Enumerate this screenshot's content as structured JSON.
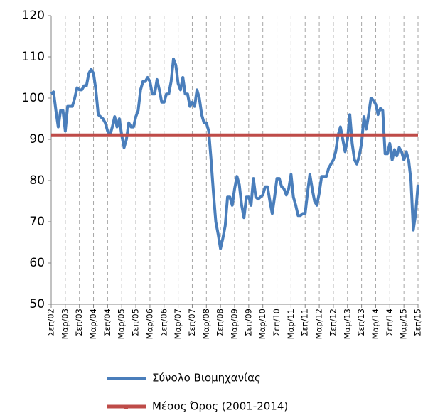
{
  "chart_data": {
    "type": "line",
    "categories": [
      "Σεπ/02",
      null,
      null,
      null,
      null,
      null,
      "Μαρ/03",
      null,
      null,
      null,
      null,
      null,
      "Σεπ/03",
      null,
      null,
      null,
      null,
      null,
      "Μαρ/04",
      null,
      null,
      null,
      null,
      null,
      "Σεπ/04",
      null,
      null,
      null,
      null,
      null,
      "Μαρ/05",
      null,
      null,
      null,
      null,
      null,
      "Σεπ/05",
      null,
      null,
      null,
      null,
      null,
      "Μαρ/06",
      null,
      null,
      null,
      null,
      null,
      "Σεπ/06",
      null,
      null,
      null,
      null,
      null,
      "Μαρ/07",
      null,
      null,
      null,
      null,
      null,
      "Σεπ/07",
      null,
      null,
      null,
      null,
      null,
      "Μαρ/08",
      null,
      null,
      null,
      null,
      null,
      "Σεπ/08",
      null,
      null,
      null,
      null,
      null,
      "Μαρ/09",
      null,
      null,
      null,
      null,
      null,
      "Σεπ/09",
      null,
      null,
      null,
      null,
      null,
      "Μαρ/10",
      null,
      null,
      null,
      null,
      null,
      "Σεπ/10",
      null,
      null,
      null,
      null,
      null,
      "Μαρ/11",
      null,
      null,
      null,
      null,
      null,
      "Σεπ/11",
      null,
      null,
      null,
      null,
      null,
      "Μαρ/12",
      null,
      null,
      null,
      null,
      null,
      "Σεπ/12",
      null,
      null,
      null,
      null,
      null,
      "Μαρ/13",
      null,
      null,
      null,
      null,
      null,
      "Σεπ/13",
      null,
      null,
      null,
      null,
      null,
      "Μαρ/14",
      null,
      null,
      null,
      null,
      null,
      "Σεπ/14",
      null,
      null,
      null,
      null,
      null,
      "Μαρ/15",
      null,
      null,
      null,
      null,
      null,
      "Σεπ/15"
    ],
    "series": [
      {
        "name": "Σύνολο Βιομηχανίας",
        "color": "#4a7ebb",
        "values": [
          101,
          101.5,
          97,
          93,
          97,
          97,
          92,
          98,
          98,
          98,
          100,
          102.5,
          102,
          102,
          103,
          103,
          106,
          107,
          106,
          102,
          96,
          95.5,
          95,
          94,
          92,
          91,
          93,
          95.5,
          93,
          95,
          91,
          88,
          90,
          94,
          93,
          93,
          95.5,
          97,
          102,
          104,
          104,
          105,
          104,
          101,
          101,
          104.5,
          102,
          99,
          99,
          101,
          101,
          104,
          109.5,
          108,
          103.5,
          102,
          105,
          101,
          101,
          98,
          99,
          98,
          102,
          100,
          96,
          94,
          94,
          92,
          85,
          77,
          70,
          67,
          63.5,
          66,
          69,
          76,
          76,
          74,
          78,
          81,
          79,
          74,
          71,
          76,
          76,
          74,
          80.5,
          76,
          75.5,
          76,
          76.5,
          78.5,
          78.5,
          75,
          72,
          76,
          80.5,
          80.5,
          78.5,
          78,
          76.5,
          78,
          81.5,
          76,
          74,
          71.5,
          71.5,
          72,
          72,
          77,
          81.5,
          78,
          75,
          74,
          77,
          81,
          81,
          81,
          83,
          84,
          85,
          87,
          91,
          93,
          90,
          87,
          90,
          96,
          89,
          85,
          84,
          86,
          89,
          95.5,
          92.5,
          96,
          100,
          99.5,
          98.5,
          96,
          97.5,
          97,
          86.5,
          86.5,
          89,
          85,
          87.5,
          86,
          88,
          87,
          85,
          87,
          85,
          80,
          68,
          72,
          79
        ]
      },
      {
        "name": "Μέσος Όρος (2001-2014)",
        "color": "#be4b48",
        "values": [
          91,
          91,
          91,
          91,
          91,
          91,
          91,
          91,
          91,
          91,
          91,
          91,
          91,
          91,
          91,
          91,
          91,
          91,
          91,
          91,
          91,
          91,
          91,
          91,
          91,
          91,
          91,
          91,
          91,
          91,
          91,
          91,
          91,
          91,
          91,
          91,
          91,
          91,
          91,
          91,
          91,
          91,
          91,
          91,
          91,
          91,
          91,
          91,
          91,
          91,
          91,
          91,
          91,
          91,
          91,
          91,
          91,
          91,
          91,
          91,
          91,
          91,
          91,
          91,
          91,
          91,
          91,
          91,
          91,
          91,
          91,
          91,
          91,
          91,
          91,
          91,
          91,
          91,
          91,
          91,
          91,
          91,
          91,
          91,
          91,
          91,
          91,
          91,
          91,
          91,
          91,
          91,
          91,
          91,
          91,
          91,
          91,
          91,
          91,
          91,
          91,
          91,
          91,
          91,
          91,
          91,
          91,
          91,
          91,
          91,
          91,
          91,
          91,
          91,
          91,
          91,
          91,
          91,
          91,
          91,
          91,
          91,
          91,
          91,
          91,
          91,
          91,
          91,
          91,
          91,
          91,
          91,
          91,
          91,
          91,
          91,
          91,
          91,
          91,
          91,
          91,
          91,
          91,
          91,
          91,
          91,
          91,
          91,
          91,
          91,
          91,
          91,
          91,
          91,
          91,
          91,
          91
        ]
      }
    ],
    "ylim": [
      50,
      120
    ],
    "yticks": [
      50,
      60,
      70,
      80,
      90,
      100,
      110,
      120
    ],
    "grid": true
  }
}
